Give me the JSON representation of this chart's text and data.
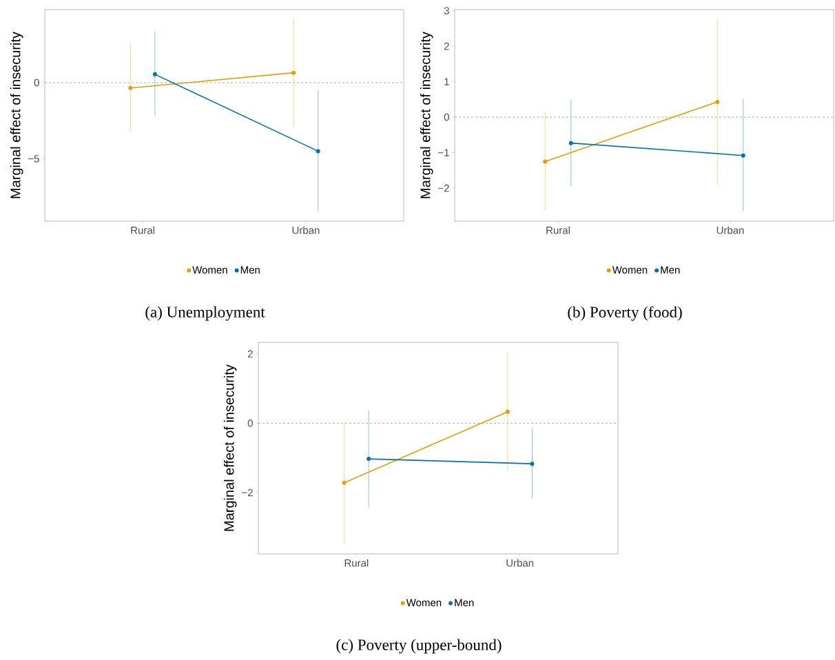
{
  "chart_data": [
    {
      "type": "line",
      "title": "(a) Unemployment",
      "ylabel": "Marginal effect of insecurity",
      "categories": [
        "Rural",
        "Urban"
      ],
      "ylim": [
        -9.1,
        4.8
      ],
      "yticks": [
        {
          "value": -5,
          "label": "−5"
        },
        0
      ],
      "marker": "circle",
      "line_style": "solid",
      "grid": false,
      "legend": "bottom",
      "series": [
        {
          "name": "Women",
          "color": "#e69f00",
          "values": [
            -0.35,
            0.65
          ],
          "errors": [
            [
              -3.2,
              2.6
            ],
            [
              -2.9,
              4.2
            ]
          ]
        },
        {
          "name": "Men",
          "color": "#0072b2",
          "values": [
            0.55,
            -4.5
          ],
          "errors": [
            [
              -2.2,
              3.4
            ],
            [
              -8.45,
              -0.5
            ]
          ]
        }
      ],
      "ref_lines": [
        {
          "axis": "y",
          "value": 0,
          "color": "#999999",
          "line_style": "dashed"
        }
      ]
    },
    {
      "type": "line",
      "title": "(b) Poverty (food)",
      "ylabel": "Marginal effect of insecurity",
      "categories": [
        "Rural",
        "Urban"
      ],
      "ylim": [
        -2.93,
        3.03
      ],
      "yticks": [
        {
          "value": -2,
          "label": "−2"
        },
        {
          "value": -1,
          "label": "−1"
        },
        0,
        1,
        2,
        3
      ],
      "marker": "circle",
      "line_style": "solid",
      "grid": false,
      "legend": "bottom",
      "series": [
        {
          "name": "Women",
          "color": "#e69f00",
          "values": [
            -1.25,
            0.43
          ],
          "errors": [
            [
              -2.63,
              0.15
            ],
            [
              -1.9,
              2.75
            ]
          ]
        },
        {
          "name": "Men",
          "color": "#0072b2",
          "values": [
            -0.73,
            -1.08
          ],
          "errors": [
            [
              -1.95,
              0.5
            ],
            [
              -2.65,
              0.52
            ]
          ]
        }
      ],
      "ref_lines": [
        {
          "axis": "y",
          "value": 0,
          "color": "#999999",
          "line_style": "dashed"
        }
      ]
    },
    {
      "type": "line",
      "title": "(c) Poverty (upper-bound)",
      "ylabel": "Marginal effect of insecurity",
      "categories": [
        "Rural",
        "Urban"
      ],
      "ylim": [
        -3.77,
        2.33
      ],
      "yticks": [
        {
          "value": -2,
          "label": "−2"
        },
        0,
        2
      ],
      "marker": "circle",
      "line_style": "solid",
      "grid": false,
      "legend": "bottom",
      "series": [
        {
          "name": "Women",
          "color": "#e69f00",
          "values": [
            -1.72,
            0.33
          ],
          "errors": [
            [
              -3.48,
              0.05
            ],
            [
              -1.38,
              2.05
            ]
          ]
        },
        {
          "name": "Men",
          "color": "#0072b2",
          "values": [
            -1.03,
            -1.17
          ],
          "errors": [
            [
              -2.43,
              0.37
            ],
            [
              -2.17,
              -0.15
            ]
          ]
        }
      ],
      "ref_lines": [
        {
          "axis": "y",
          "value": 0,
          "color": "#999999",
          "line_style": "dashed"
        }
      ]
    }
  ]
}
